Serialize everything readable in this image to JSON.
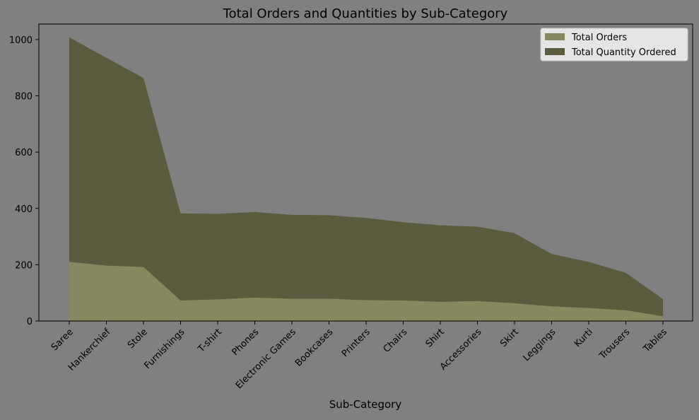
{
  "chart_data": {
    "type": "area",
    "stacked": false,
    "title": "Total Orders and Quantities by Sub-Category",
    "xlabel": "Sub-Category",
    "ylabel": "",
    "categories": [
      "Saree",
      "Hankerchief",
      "Stole",
      "Furnishings",
      "T-shirt",
      "Phones",
      "Electronic Games",
      "Bookcases",
      "Printers",
      "Chairs",
      "Shirt",
      "Accessories",
      "Skirt",
      "Leggings",
      "Kurti",
      "Trousers",
      "Tables"
    ],
    "ylim": [
      0,
      1055
    ],
    "yticks": [
      0,
      200,
      400,
      600,
      800,
      1000
    ],
    "grid": false,
    "legend_position": "top-right",
    "series": [
      {
        "name": "Total Orders",
        "color": "#888860",
        "values": [
          210,
          197,
          192,
          73,
          77,
          83,
          79,
          79,
          74,
          73,
          68,
          71,
          63,
          52,
          46,
          38,
          17
        ]
      },
      {
        "name": "Total Quantity Ordered",
        "color": "#5b5b3e",
        "values": [
          1008,
          935,
          863,
          382,
          381,
          387,
          377,
          376,
          366,
          351,
          340,
          335,
          312,
          238,
          210,
          171,
          78
        ]
      }
    ]
  }
}
